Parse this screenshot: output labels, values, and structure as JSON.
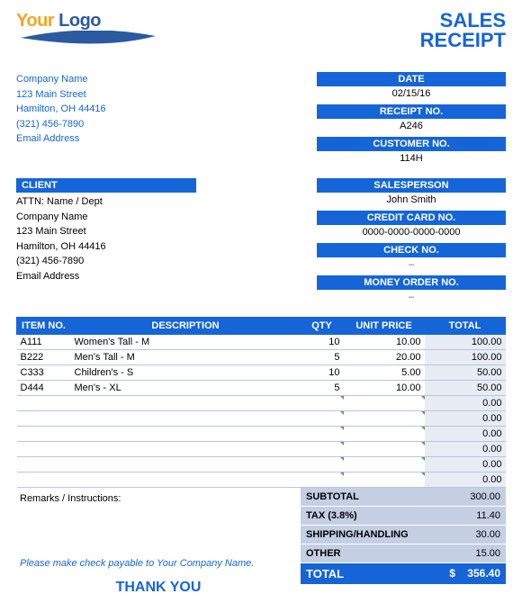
{
  "logo": {
    "your": "Your",
    "logo": "Logo"
  },
  "title": {
    "line1": "SALES",
    "line2": "RECEIPT"
  },
  "company": {
    "name": "Company Name",
    "street": "123 Main Street",
    "city": "Hamilton, OH  44416",
    "phone": "(321) 456-7890",
    "email": "Email Address"
  },
  "meta": {
    "date_label": "DATE",
    "date_value": "02/15/16",
    "receipt_label": "RECEIPT NO.",
    "receipt_value": "A246",
    "customer_label": "CUSTOMER NO.",
    "customer_value": "114H"
  },
  "client": {
    "header": "CLIENT",
    "attn": "ATTN: Name / Dept",
    "company": "Company Name",
    "street": "123 Main Street",
    "city": "Hamilton, OH  44416",
    "phone": "(321) 456-7890",
    "email": "Email Address"
  },
  "payment": {
    "salesperson_label": "SALESPERSON",
    "salesperson_value": "John Smith",
    "cc_label": "CREDIT CARD NO.",
    "cc_value": "0000-0000-0000-0000",
    "check_label": "CHECK NO.",
    "check_value": "–",
    "mo_label": "MONEY ORDER NO.",
    "mo_value": "–"
  },
  "columns": {
    "itemno": "ITEM NO.",
    "desc": "DESCRIPTION",
    "qty": "QTY",
    "price": "UNIT PRICE",
    "total": "TOTAL"
  },
  "rows": [
    {
      "itemno": "A111",
      "desc": "Women's Tall - M",
      "qty": "10",
      "price": "10.00",
      "total": "100.00"
    },
    {
      "itemno": "B222",
      "desc": "Men's Tall - M",
      "qty": "5",
      "price": "20.00",
      "total": "100.00"
    },
    {
      "itemno": "C333",
      "desc": "Children's - S",
      "qty": "10",
      "price": "5.00",
      "total": "50.00"
    },
    {
      "itemno": "D444",
      "desc": "Men's - XL",
      "qty": "5",
      "price": "10.00",
      "total": "50.00"
    }
  ],
  "empty_totals": [
    "0.00",
    "0.00",
    "0.00",
    "0.00",
    "0.00",
    "0.00"
  ],
  "remarks_label": "Remarks / Instructions:",
  "payable": {
    "pre": "Please make check payable to ",
    "name": "Your Company Name."
  },
  "thanks": "THANK YOU",
  "totals": {
    "subtotal_label": "SUBTOTAL",
    "subtotal_value": "300.00",
    "tax_label": "TAX (3.8%)",
    "tax_value": "11.40",
    "shipping_label": "SHIPPING/HANDLING",
    "shipping_value": "30.00",
    "other_label": "OTHER",
    "other_value": "15.00",
    "grand_label": "TOTAL",
    "grand_currency": "$",
    "grand_value": "356.40"
  },
  "colors": {
    "primary": "#1565d8",
    "accent": "#f5a623",
    "subtle_bg": "#c5cfe4",
    "cell_bg": "#e8ecf4"
  }
}
